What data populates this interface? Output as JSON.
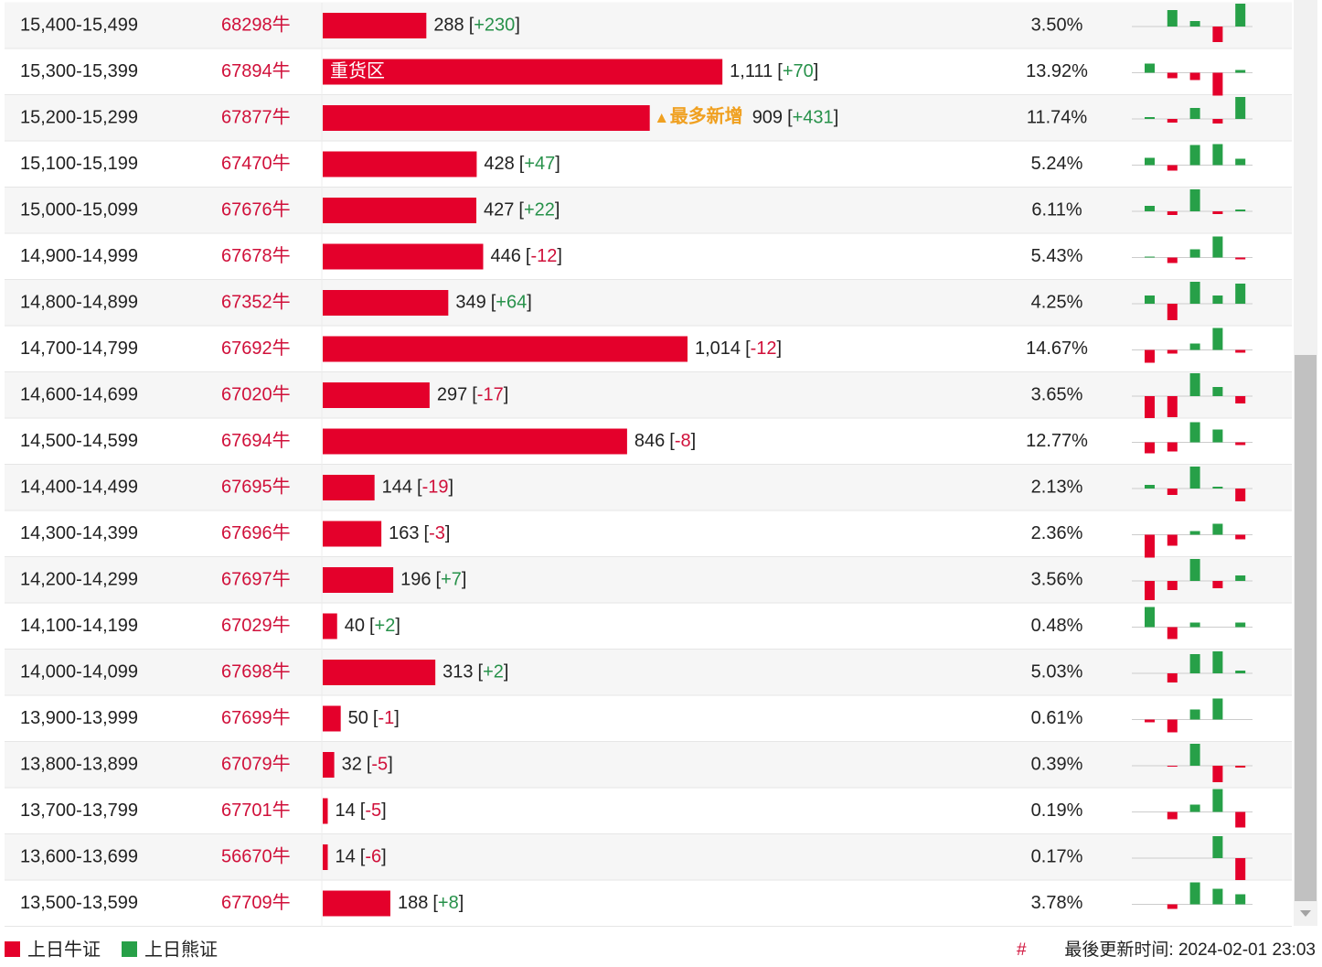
{
  "table": {
    "change_brackets": [
      "[",
      "]"
    ],
    "rows": [
      {
        "range": "15,400-15,499",
        "code": "68298牛",
        "count": {
          "value": 288,
          "label": "288"
        },
        "change": "+230",
        "pct": "3.50%",
        "spark": [
          0,
          18,
          6,
          -17,
          25
        ]
      },
      {
        "range": "15,300-15,399",
        "code": "67894牛",
        "count": {
          "value": 1111,
          "label": "1,111"
        },
        "change": "+70",
        "pct": "13.92%",
        "spark": [
          10,
          -6,
          -8,
          -25,
          3
        ],
        "inner_tag": "重货区"
      },
      {
        "range": "15,200-15,299",
        "code": "67877牛",
        "count": {
          "value": 909,
          "label": "909"
        },
        "change": "+431",
        "pct": "11.74%",
        "spark": [
          2,
          -4,
          12,
          -5,
          24
        ],
        "note": "最多新增"
      },
      {
        "range": "15,100-15,199",
        "code": "67470牛",
        "count": {
          "value": 428,
          "label": "428"
        },
        "change": "+47",
        "pct": "5.24%",
        "spark": [
          8,
          -6,
          22,
          23,
          7
        ]
      },
      {
        "range": "15,000-15,099",
        "code": "67676牛",
        "count": {
          "value": 427,
          "label": "427"
        },
        "change": "+22",
        "pct": "6.11%",
        "spark": [
          6,
          -4,
          24,
          -3,
          2
        ]
      },
      {
        "range": "14,900-14,999",
        "code": "67678牛",
        "count": {
          "value": 446,
          "label": "446"
        },
        "change": "-12",
        "pct": "5.43%",
        "spark": [
          1,
          -6,
          9,
          23,
          -2
        ]
      },
      {
        "range": "14,800-14,899",
        "code": "67352牛",
        "count": {
          "value": 349,
          "label": "349"
        },
        "change": "+64",
        "pct": "4.25%",
        "spark": [
          9,
          -18,
          24,
          9,
          22
        ]
      },
      {
        "range": "14,700-14,799",
        "code": "67692牛",
        "count": {
          "value": 1014,
          "label": "1,014"
        },
        "change": "-12",
        "pct": "14.67%",
        "spark": [
          -14,
          -4,
          7,
          24,
          -3
        ]
      },
      {
        "range": "14,600-14,699",
        "code": "67020牛",
        "count": {
          "value": 297,
          "label": "297"
        },
        "change": "-17",
        "pct": "3.65%",
        "spark": [
          -24,
          -23,
          25,
          10,
          -8
        ]
      },
      {
        "range": "14,500-14,599",
        "code": "67694牛",
        "count": {
          "value": 846,
          "label": "846"
        },
        "change": "-8",
        "pct": "12.77%",
        "spark": [
          -12,
          -10,
          22,
          14,
          -3
        ]
      },
      {
        "range": "14,400-14,499",
        "code": "67695牛",
        "count": {
          "value": 144,
          "label": "144"
        },
        "change": "-19",
        "pct": "2.13%",
        "spark": [
          4,
          -7,
          24,
          2,
          -14
        ]
      },
      {
        "range": "14,300-14,399",
        "code": "67696牛",
        "count": {
          "value": 163,
          "label": "163"
        },
        "change": "-3",
        "pct": "2.36%",
        "spark": [
          -25,
          -12,
          4,
          12,
          -5
        ]
      },
      {
        "range": "14,200-14,299",
        "code": "67697牛",
        "count": {
          "value": 196,
          "label": "196"
        },
        "change": "+7",
        "pct": "3.56%",
        "spark": [
          -21,
          -10,
          24,
          -8,
          6
        ]
      },
      {
        "range": "14,100-14,199",
        "code": "67029牛",
        "count": {
          "value": 40,
          "label": "40"
        },
        "change": "+2",
        "pct": "0.48%",
        "spark": [
          22,
          -13,
          5,
          0,
          5
        ]
      },
      {
        "range": "14,000-14,099",
        "code": "67698牛",
        "count": {
          "value": 313,
          "label": "313"
        },
        "change": "+2",
        "pct": "5.03%",
        "spark": [
          0,
          -10,
          21,
          24,
          3
        ]
      },
      {
        "range": "13,900-13,999",
        "code": "67699牛",
        "count": {
          "value": 50,
          "label": "50"
        },
        "change": "-1",
        "pct": "0.61%",
        "spark": [
          -3,
          -14,
          11,
          23,
          0
        ]
      },
      {
        "range": "13,800-13,899",
        "code": "67079牛",
        "count": {
          "value": 32,
          "label": "32"
        },
        "change": "-5",
        "pct": "0.39%",
        "spark": [
          0,
          -1,
          24,
          -18,
          -2
        ]
      },
      {
        "range": "13,700-13,799",
        "code": "67701牛",
        "count": {
          "value": 14,
          "label": "14"
        },
        "change": "-5",
        "pct": "0.19%",
        "spark": [
          0,
          -8,
          8,
          25,
          -17
        ]
      },
      {
        "range": "13,600-13,699",
        "code": "56670牛",
        "count": {
          "value": 14,
          "label": "14"
        },
        "change": "-6",
        "pct": "0.17%",
        "spark": [
          0,
          0,
          0,
          24,
          -24
        ]
      },
      {
        "range": "13,500-13,599",
        "code": "67709牛",
        "count": {
          "value": 188,
          "label": "188"
        },
        "change": "+8",
        "pct": "3.78%",
        "spark": [
          0,
          -5,
          24,
          17,
          11
        ]
      }
    ]
  },
  "legend": [
    "上日牛证",
    "上日熊证"
  ],
  "footer": {
    "hash": "#",
    "updated": "最後更新时间: 2024-02-01 23:03"
  }
}
